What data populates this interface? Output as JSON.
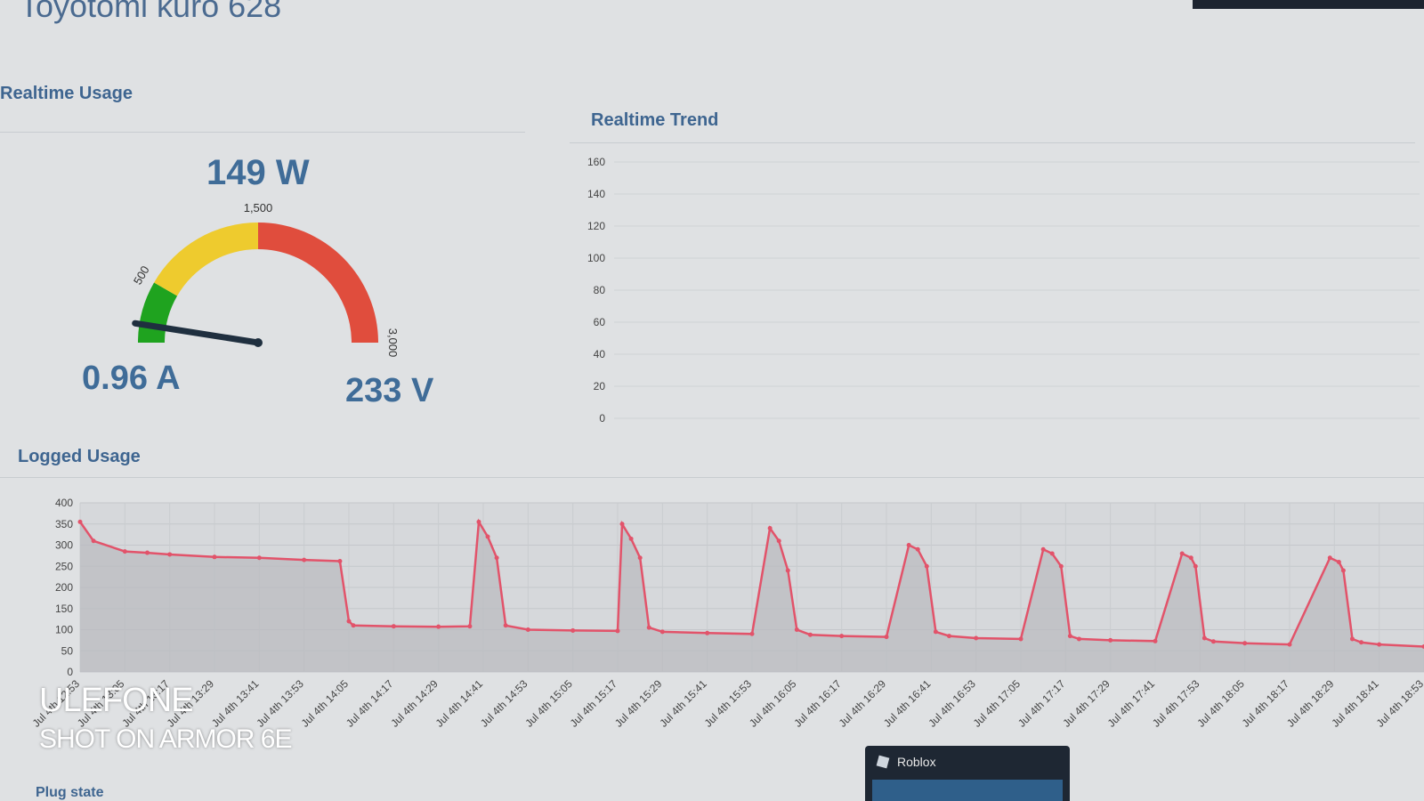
{
  "page": {
    "title": "Toyotomi kuro 628"
  },
  "realtime_usage": {
    "title": "Realtime Usage",
    "power": "149 W",
    "current": "0.96 A",
    "voltage": "233 V",
    "gauge": {
      "value": 149,
      "min": 0,
      "max": 3000,
      "labels": [
        "500",
        "1,500",
        "3,000"
      ],
      "bands": [
        {
          "from": 0,
          "to": 500,
          "color": "#1fa31f"
        },
        {
          "from": 500,
          "to": 1500,
          "color": "#eecb2e"
        },
        {
          "from": 1500,
          "to": 3000,
          "color": "#e04d3d"
        }
      ]
    }
  },
  "realtime_trend": {
    "title": "Realtime Trend",
    "y_ticks": [
      "160",
      "140",
      "120",
      "100",
      "80",
      "60",
      "40",
      "20",
      "0"
    ]
  },
  "logged_usage": {
    "title": "Logged Usage",
    "chart_data": {
      "type": "area",
      "ylim": [
        0,
        400
      ],
      "y_ticks": [
        0,
        50,
        100,
        150,
        200,
        250,
        300,
        350,
        400
      ],
      "x_labels": [
        "Jul 4th 12:53",
        "Jul 4th 13:05",
        "Jul 4th 13:17",
        "Jul 4th 13:29",
        "Jul 4th 13:41",
        "Jul 4th 13:53",
        "Jul 4th 14:05",
        "Jul 4th 14:17",
        "Jul 4th 14:29",
        "Jul 4th 14:41",
        "Jul 4th 14:53",
        "Jul 4th 15:05",
        "Jul 4th 15:17",
        "Jul 4th 15:29",
        "Jul 4th 15:41",
        "Jul 4th 15:53",
        "Jul 4th 16:05",
        "Jul 4th 16:17",
        "Jul 4th 16:29",
        "Jul 4th 16:41",
        "Jul 4th 16:53",
        "Jul 4th 17:05",
        "Jul 4th 17:17",
        "Jul 4th 17:29",
        "Jul 4th 17:41",
        "Jul 4th 17:53",
        "Jul 4th 18:05",
        "Jul 4th 18:17",
        "Jul 4th 18:29",
        "Jul 4th 18:41",
        "Jul 4th 18:53"
      ],
      "series": [
        {
          "color": "#e2536a",
          "x": [
            0,
            0.3,
            1,
            1.5,
            2,
            3,
            4,
            5,
            5.8,
            6,
            6.1,
            7,
            8,
            8.7,
            8.9,
            9.1,
            9.3,
            9.5,
            10,
            11,
            12,
            12.1,
            12.3,
            12.5,
            12.7,
            13,
            14,
            15,
            15.4,
            15.6,
            15.8,
            16,
            16.3,
            17,
            18,
            18.5,
            18.7,
            18.9,
            19.1,
            19.4,
            20,
            21,
            21.5,
            21.7,
            21.9,
            22.1,
            22.3,
            23,
            24,
            24.6,
            24.8,
            24.9,
            25.1,
            25.3,
            26,
            27,
            27.9,
            28.1,
            28.2,
            28.4,
            28.6,
            29,
            30
          ],
          "y": [
            355,
            310,
            285,
            282,
            278,
            272,
            270,
            265,
            262,
            120,
            110,
            108,
            107,
            108,
            355,
            320,
            270,
            110,
            100,
            98,
            97,
            350,
            315,
            270,
            105,
            95,
            92,
            90,
            340,
            310,
            240,
            100,
            88,
            85,
            83,
            300,
            290,
            250,
            95,
            85,
            80,
            78,
            290,
            280,
            250,
            85,
            78,
            75,
            73,
            280,
            270,
            250,
            80,
            72,
            68,
            65,
            270,
            260,
            240,
            78,
            70,
            65,
            60
          ]
        }
      ]
    }
  },
  "footer": {
    "plug_state": "Plug state"
  },
  "taskbar": {
    "app": "Roblox"
  },
  "watermark": {
    "line1": "ULEFONE",
    "line2": "SHOT ON ARMOR 6E"
  }
}
